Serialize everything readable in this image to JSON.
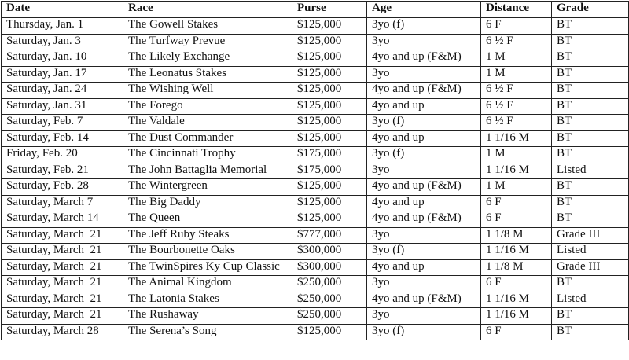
{
  "headers": [
    "Date",
    "Race",
    "Purse",
    "Age",
    "Distance",
    "Grade"
  ],
  "rows": [
    [
      "Thursday, Jan. 1",
      "The Gowell Stakes",
      "$125,000",
      "3yo (f)",
      "6 F",
      "BT"
    ],
    [
      "Saturday, Jan. 3",
      "The Turfway Prevue",
      "$125,000",
      "3yo",
      "6 ½ F",
      "BT"
    ],
    [
      "Saturday, Jan. 10",
      "The Likely Exchange",
      "$125,000",
      "4yo and up (F&M)",
      "1 M",
      "BT"
    ],
    [
      "Saturday, Jan. 17",
      "The Leonatus Stakes",
      "$125,000",
      "3yo",
      "1 M",
      "BT"
    ],
    [
      "Saturday, Jan. 24",
      "The Wishing Well",
      "$125,000",
      "4yo and up (F&M)",
      "6 ½ F",
      "BT"
    ],
    [
      "Saturday, Jan. 31",
      "The Forego",
      "$125,000",
      "4yo and up",
      "6 ½ F",
      "BT"
    ],
    [
      "Saturday, Feb. 7",
      "The Valdale",
      "$125,000",
      "3yo (f)",
      "6 ½ F",
      "BT"
    ],
    [
      "Saturday, Feb. 14",
      "The Dust Commander",
      "$125,000",
      "4yo and up",
      "1 1/16 M",
      "BT"
    ],
    [
      "Friday, Feb. 20",
      "The Cincinnati Trophy",
      "$175,000",
      "3yo (f)",
      "1 M",
      "BT"
    ],
    [
      "Saturday, Feb. 21",
      "The John Battaglia Memorial",
      "$175,000",
      "3yo",
      "1 1/16 M",
      "Listed"
    ],
    [
      "Saturday, Feb. 28",
      "The Wintergreen",
      "$125,000",
      "4yo and up (F&M)",
      "1 M",
      "BT"
    ],
    [
      "Saturday, March 7",
      "The Big Daddy",
      "$125,000",
      "4yo and up",
      "6 F",
      "BT"
    ],
    [
      "Saturday, March 14",
      "The Queen",
      "$125,000",
      "4yo and up (F&M)",
      "6 F",
      "BT"
    ],
    [
      "Saturday, March  21",
      "The Jeff Ruby Steaks",
      "$777,000",
      "3yo",
      "1 1/8 M",
      "Grade III"
    ],
    [
      "Saturday, March  21",
      "The Bourbonette Oaks",
      "$300,000",
      "3yo (f)",
      "1 1/16 M",
      "Listed"
    ],
    [
      "Saturday, March  21",
      "The TwinSpires Ky Cup Classic",
      "$300,000",
      "4yo and up",
      "1 1/8 M",
      "Grade III"
    ],
    [
      "Saturday, March  21",
      "The Animal Kingdom",
      "$250,000",
      "3yo",
      "6 F",
      "BT"
    ],
    [
      "Saturday, March  21",
      "The Latonia Stakes",
      "$250,000",
      "4yo and up (F&M)",
      "1 1/16 M",
      "Listed"
    ],
    [
      "Saturday, March  21",
      "The Rushaway",
      "$250,000",
      "3yo",
      "1 1/16 M",
      "BT"
    ],
    [
      "Saturday, March 28",
      "The Serena’s Song",
      "$125,000",
      "3yo (f)",
      "6 F",
      "BT"
    ]
  ]
}
